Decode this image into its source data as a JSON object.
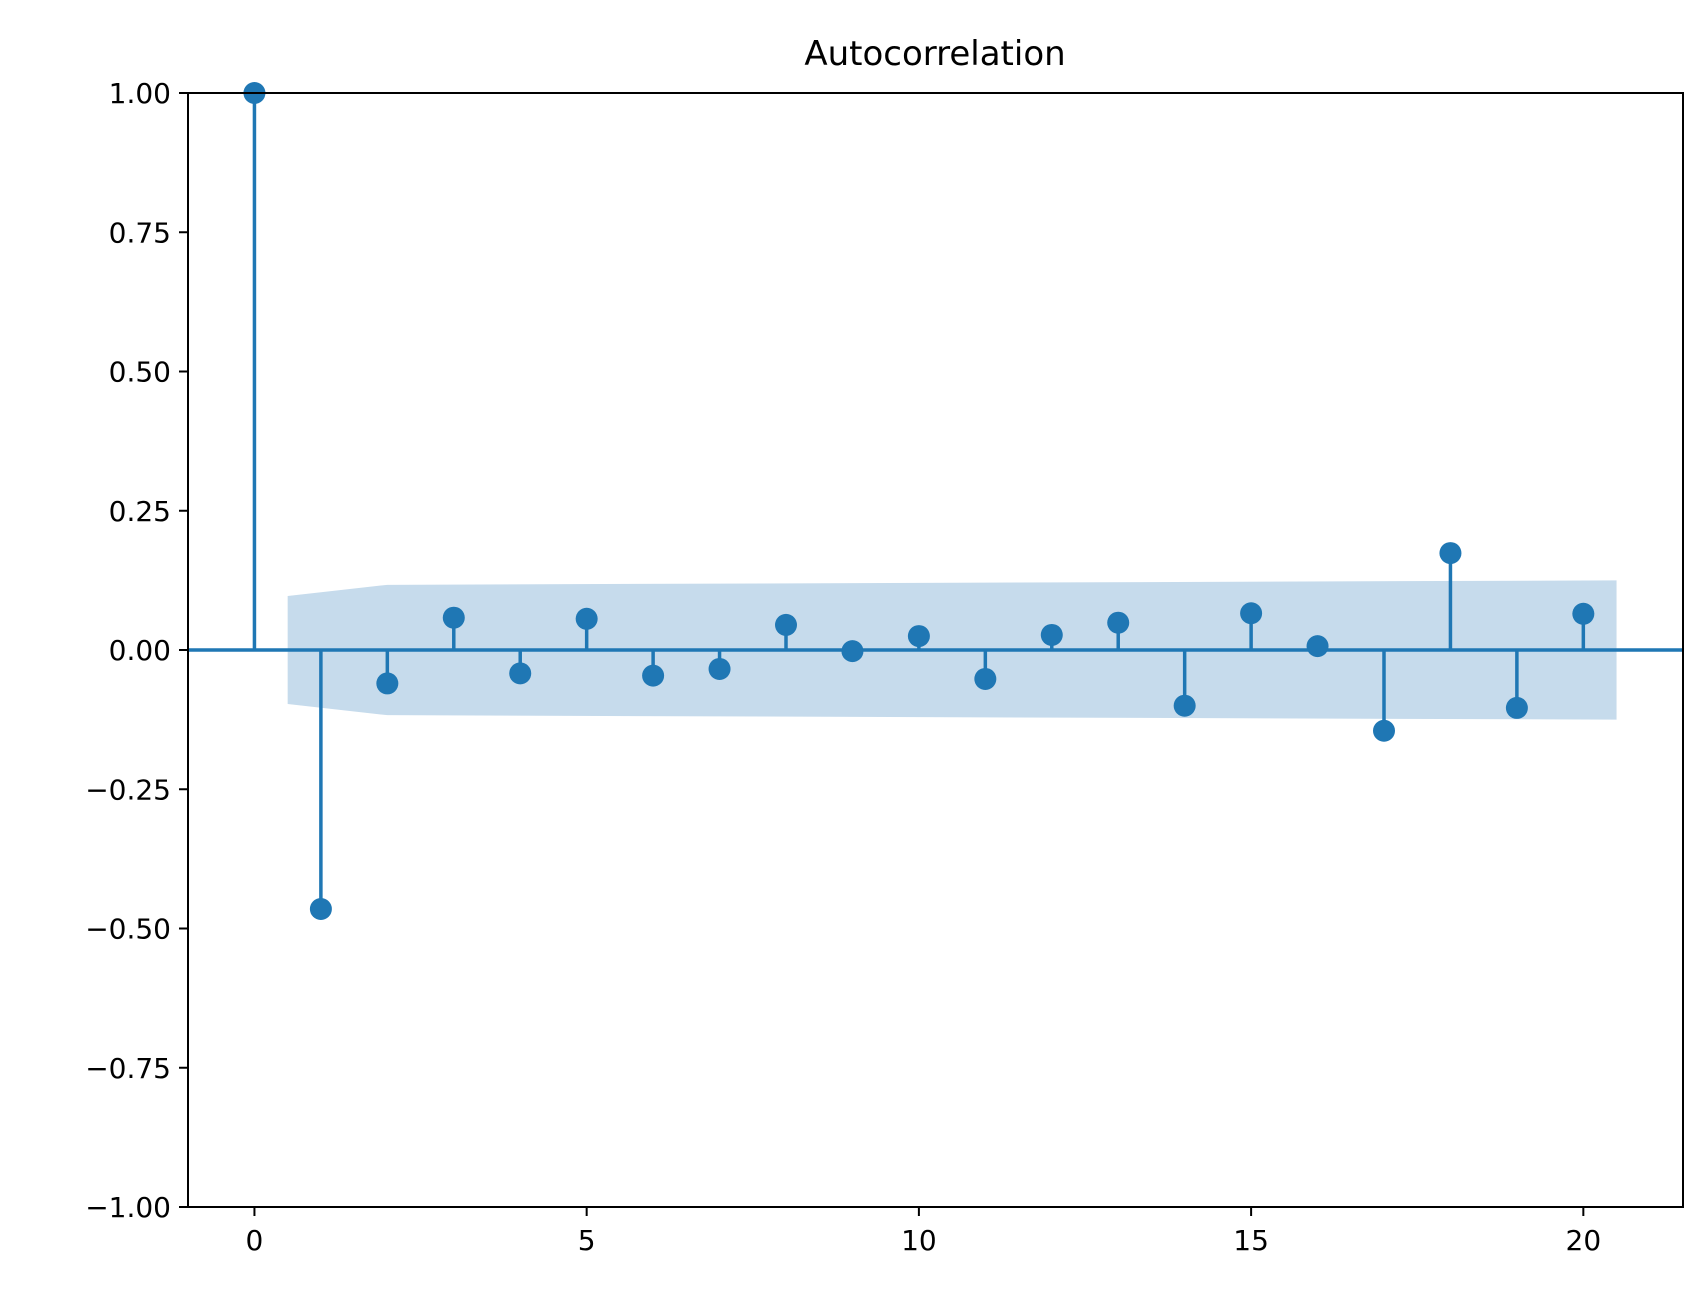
{
  "chart_data": {
    "type": "stem",
    "title": "Autocorrelation",
    "xlabel": "",
    "ylabel": "",
    "xlim": [
      -1,
      21.5
    ],
    "ylim": [
      -1.0,
      1.0
    ],
    "x_ticks": [
      0,
      5,
      10,
      15,
      20
    ],
    "x_tick_labels": [
      "0",
      "5",
      "10",
      "15",
      "20"
    ],
    "y_ticks": [
      1.0,
      0.75,
      0.5,
      0.25,
      0.0,
      -0.25,
      -0.5,
      -0.75,
      -1.0
    ],
    "y_tick_labels": [
      "1.00",
      "0.75",
      "0.50",
      "0.25",
      "0.00",
      "−0.25",
      "−0.50",
      "−0.75",
      "−1.00"
    ],
    "lags": [
      0,
      1,
      2,
      3,
      4,
      5,
      6,
      7,
      8,
      9,
      10,
      11,
      12,
      13,
      14,
      15,
      16,
      17,
      18,
      19,
      20
    ],
    "values": [
      1.0,
      -0.465,
      -0.06,
      0.058,
      -0.042,
      0.056,
      -0.046,
      -0.034,
      0.045,
      -0.002,
      0.025,
      -0.052,
      0.027,
      0.049,
      -0.1,
      0.066,
      0.007,
      -0.145,
      0.174,
      -0.104,
      0.065
    ],
    "confidence_band": {
      "x": [
        0.5,
        2,
        20.5
      ],
      "upper": [
        0.097,
        0.117,
        0.125
      ],
      "lower": [
        -0.097,
        -0.117,
        -0.125
      ]
    },
    "colors": {
      "series": "#1f77b4",
      "band": "#c6dbec",
      "axes": "#000000"
    },
    "grid": false
  }
}
